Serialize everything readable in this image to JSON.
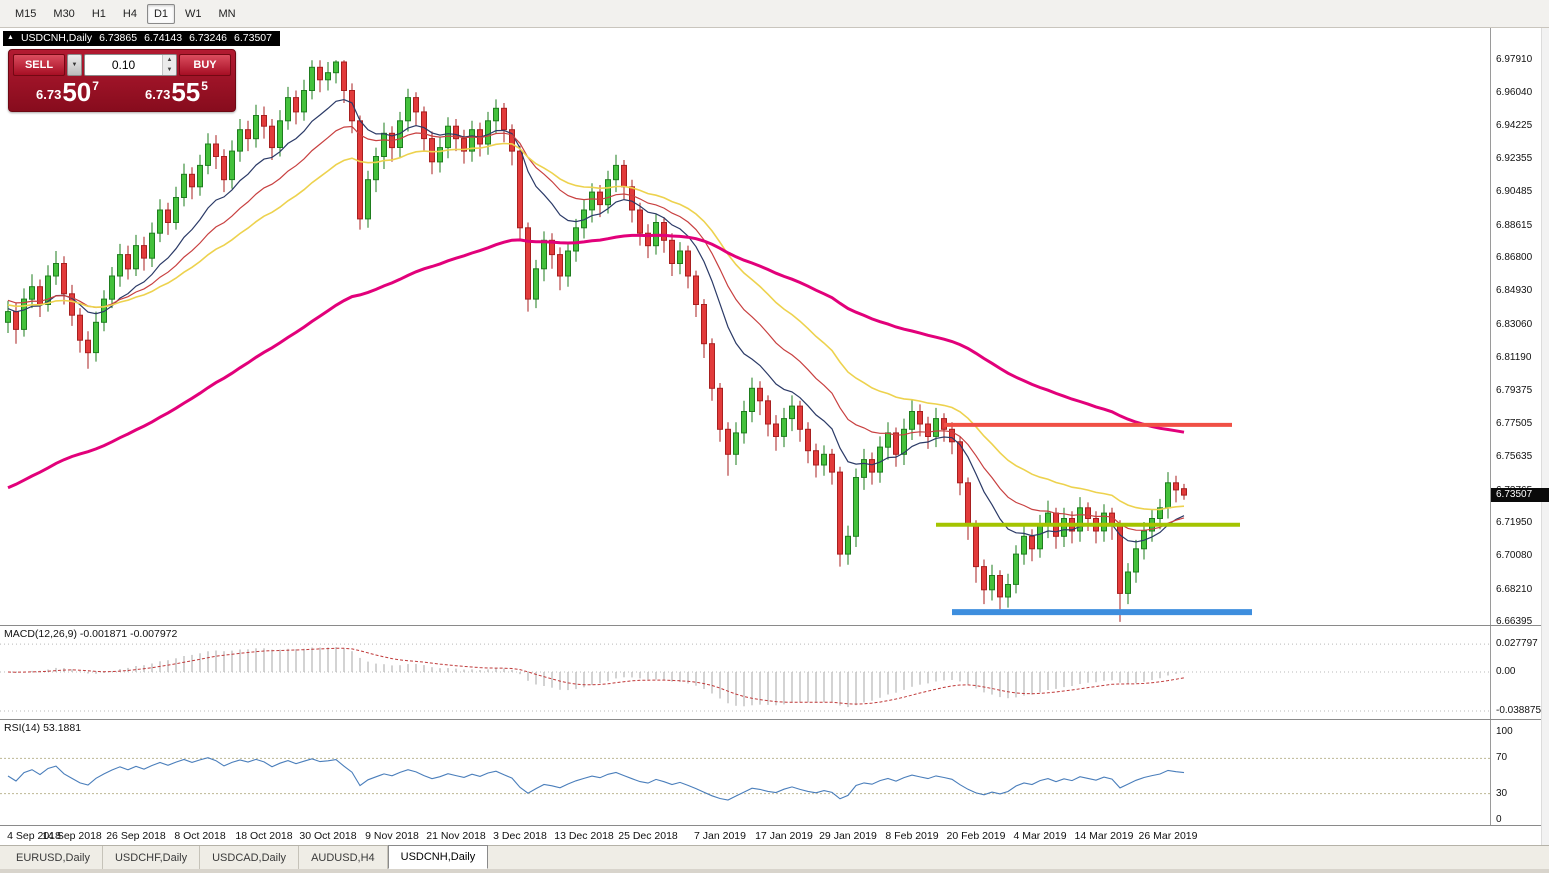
{
  "toolbar": {
    "timeframes": [
      "M15",
      "M30",
      "H1",
      "H4",
      "D1",
      "W1",
      "MN"
    ],
    "active_timeframe": "D1"
  },
  "symbol_bar": {
    "marker": "▲",
    "symbol": "USDCNH,Daily",
    "open": "6.73865",
    "high": "6.74143",
    "low": "6.73246",
    "close": "6.73507"
  },
  "trade_panel": {
    "sell_label": "SELL",
    "buy_label": "BUY",
    "volume": "0.10",
    "sell_price": {
      "prefix": "6.73",
      "big": "50",
      "sup": "7"
    },
    "buy_price": {
      "prefix": "6.73",
      "big": "55",
      "sup": "5"
    }
  },
  "price_axis": {
    "labels": [
      "6.97910",
      "6.96040",
      "6.94225",
      "6.92355",
      "6.90485",
      "6.88615",
      "6.86800",
      "6.84930",
      "6.83060",
      "6.81190",
      "6.79375",
      "6.77505",
      "6.75635",
      "6.73765",
      "6.71950",
      "6.70080",
      "6.68210",
      "6.66395"
    ],
    "current_price_tag": "6.73507"
  },
  "chart_data": {
    "type": "candlestick",
    "title": "USDCNH,Daily",
    "symbol": "USDCNH",
    "timeframe": "Daily",
    "axis": {
      "p_top": 6.9791,
      "p_bottom": 6.66395
    },
    "x_labels": [
      {
        "label": "4 Sep 2018",
        "i": 0
      },
      {
        "label": "14 Sep 2018",
        "i": 8
      },
      {
        "label": "26 Sep 2018",
        "i": 16
      },
      {
        "label": "8 Oct 2018",
        "i": 24
      },
      {
        "label": "18 Oct 2018",
        "i": 32
      },
      {
        "label": "30 Oct 2018",
        "i": 40
      },
      {
        "label": "9 Nov 2018",
        "i": 48
      },
      {
        "label": "21 Nov 2018",
        "i": 56
      },
      {
        "label": "3 Dec 2018",
        "i": 64
      },
      {
        "label": "13 Dec 2018",
        "i": 72
      },
      {
        "label": "25 Dec 2018",
        "i": 80
      },
      {
        "label": "7 Jan 2019",
        "i": 89
      },
      {
        "label": "17 Jan 2019",
        "i": 97
      },
      {
        "label": "29 Jan 2019",
        "i": 105
      },
      {
        "label": "8 Feb 2019",
        "i": 113
      },
      {
        "label": "20 Feb 2019",
        "i": 121
      },
      {
        "label": "4 Mar 2019",
        "i": 129
      },
      {
        "label": "14 Mar 2019",
        "i": 137
      },
      {
        "label": "26 Mar 2019",
        "i": 145
      }
    ],
    "candles": [
      [
        6.832,
        6.844,
        6.826,
        6.838
      ],
      [
        6.838,
        6.843,
        6.82,
        6.828
      ],
      [
        6.828,
        6.851,
        6.824,
        6.845
      ],
      [
        6.845,
        6.859,
        6.84,
        6.852
      ],
      [
        6.852,
        6.856,
        6.835,
        6.842
      ],
      [
        6.842,
        6.864,
        6.838,
        6.858
      ],
      [
        6.858,
        6.872,
        6.853,
        6.865
      ],
      [
        6.865,
        6.869,
        6.842,
        6.848
      ],
      [
        6.848,
        6.853,
        6.83,
        6.836
      ],
      [
        6.836,
        6.84,
        6.815,
        6.822
      ],
      [
        6.822,
        6.827,
        6.806,
        6.815
      ],
      [
        6.815,
        6.838,
        6.81,
        6.832
      ],
      [
        6.832,
        6.85,
        6.827,
        6.845
      ],
      [
        6.845,
        6.863,
        6.84,
        6.858
      ],
      [
        6.858,
        6.876,
        6.852,
        6.87
      ],
      [
        6.87,
        6.875,
        6.856,
        6.862
      ],
      [
        6.862,
        6.881,
        6.858,
        6.875
      ],
      [
        6.875,
        6.88,
        6.861,
        6.868
      ],
      [
        6.868,
        6.888,
        6.863,
        6.882
      ],
      [
        6.882,
        6.901,
        6.877,
        6.895
      ],
      [
        6.895,
        6.899,
        6.881,
        6.888
      ],
      [
        6.888,
        6.908,
        6.884,
        6.902
      ],
      [
        6.902,
        6.921,
        6.897,
        6.915
      ],
      [
        6.915,
        6.919,
        6.901,
        6.908
      ],
      [
        6.908,
        6.926,
        6.903,
        6.92
      ],
      [
        6.92,
        6.938,
        6.915,
        6.932
      ],
      [
        6.932,
        6.937,
        6.918,
        6.925
      ],
      [
        6.925,
        6.929,
        6.905,
        6.912
      ],
      [
        6.912,
        6.934,
        6.907,
        6.928
      ],
      [
        6.928,
        6.946,
        6.922,
        6.94
      ],
      [
        6.94,
        6.945,
        6.928,
        6.935
      ],
      [
        6.935,
        6.954,
        6.93,
        6.948
      ],
      [
        6.948,
        6.953,
        6.935,
        6.942
      ],
      [
        6.942,
        6.946,
        6.923,
        6.93
      ],
      [
        6.93,
        6.951,
        6.925,
        6.945
      ],
      [
        6.945,
        6.964,
        6.94,
        6.958
      ],
      [
        6.958,
        6.962,
        6.943,
        6.95
      ],
      [
        6.95,
        6.968,
        6.945,
        6.962
      ],
      [
        6.962,
        6.979,
        6.957,
        6.975
      ],
      [
        6.975,
        6.979,
        6.961,
        6.968
      ],
      [
        6.968,
        6.978,
        6.962,
        6.972
      ],
      [
        6.972,
        6.979,
        6.966,
        6.978
      ],
      [
        6.978,
        6.979,
        6.955,
        6.962
      ],
      [
        6.962,
        6.966,
        6.938,
        6.945
      ],
      [
        6.945,
        6.948,
        6.884,
        6.89
      ],
      [
        6.89,
        6.917,
        6.885,
        6.912
      ],
      [
        6.912,
        6.93,
        6.905,
        6.925
      ],
      [
        6.925,
        6.944,
        6.918,
        6.938
      ],
      [
        6.938,
        6.942,
        6.922,
        6.93
      ],
      [
        6.93,
        6.95,
        6.924,
        6.945
      ],
      [
        6.945,
        6.963,
        6.939,
        6.958
      ],
      [
        6.958,
        6.961,
        6.942,
        6.95
      ],
      [
        6.95,
        6.953,
        6.928,
        6.935
      ],
      [
        6.935,
        6.939,
        6.915,
        6.922
      ],
      [
        6.922,
        6.936,
        6.916,
        6.93
      ],
      [
        6.93,
        6.947,
        6.924,
        6.942
      ],
      [
        6.942,
        6.946,
        6.928,
        6.935
      ],
      [
        6.935,
        6.94,
        6.921,
        6.928
      ],
      [
        6.928,
        6.945,
        6.922,
        6.94
      ],
      [
        6.94,
        6.944,
        6.925,
        6.932
      ],
      [
        6.932,
        6.95,
        6.926,
        6.945
      ],
      [
        6.945,
        6.957,
        6.938,
        6.952
      ],
      [
        6.952,
        6.955,
        6.933,
        6.94
      ],
      [
        6.94,
        6.943,
        6.92,
        6.928
      ],
      [
        6.928,
        6.931,
        6.878,
        6.885
      ],
      [
        6.885,
        6.888,
        6.838,
        6.845
      ],
      [
        6.845,
        6.867,
        6.84,
        6.862
      ],
      [
        6.862,
        6.883,
        6.855,
        6.878
      ],
      [
        6.878,
        6.882,
        6.862,
        6.87
      ],
      [
        6.87,
        6.874,
        6.85,
        6.858
      ],
      [
        6.858,
        6.877,
        6.852,
        6.872
      ],
      [
        6.872,
        6.89,
        6.866,
        6.885
      ],
      [
        6.885,
        6.901,
        6.879,
        6.895
      ],
      [
        6.895,
        6.91,
        6.888,
        6.905
      ],
      [
        6.905,
        6.909,
        6.891,
        6.898
      ],
      [
        6.898,
        6.917,
        6.893,
        6.912
      ],
      [
        6.912,
        6.926,
        6.905,
        6.92
      ],
      [
        6.92,
        6.923,
        6.901,
        6.908
      ],
      [
        6.908,
        6.912,
        6.888,
        6.895
      ],
      [
        6.895,
        6.899,
        6.875,
        6.882
      ],
      [
        6.882,
        6.887,
        6.868,
        6.875
      ],
      [
        6.875,
        6.893,
        6.87,
        6.888
      ],
      [
        6.888,
        6.891,
        6.871,
        6.878
      ],
      [
        6.878,
        6.882,
        6.858,
        6.865
      ],
      [
        6.865,
        6.877,
        6.859,
        6.872
      ],
      [
        6.872,
        6.875,
        6.851,
        6.858
      ],
      [
        6.858,
        6.861,
        6.835,
        6.842
      ],
      [
        6.842,
        6.845,
        6.812,
        6.82
      ],
      [
        6.82,
        6.823,
        6.788,
        6.795
      ],
      [
        6.795,
        6.798,
        6.765,
        6.772
      ],
      [
        6.772,
        6.776,
        6.746,
        6.758
      ],
      [
        6.758,
        6.776,
        6.752,
        6.77
      ],
      [
        6.77,
        6.788,
        6.764,
        6.782
      ],
      [
        6.782,
        6.801,
        6.776,
        6.795
      ],
      [
        6.795,
        6.799,
        6.78,
        6.788
      ],
      [
        6.788,
        6.791,
        6.768,
        6.775
      ],
      [
        6.775,
        6.78,
        6.76,
        6.768
      ],
      [
        6.768,
        6.784,
        6.762,
        6.778
      ],
      [
        6.778,
        6.791,
        6.771,
        6.785
      ],
      [
        6.785,
        6.788,
        6.765,
        6.772
      ],
      [
        6.772,
        6.776,
        6.753,
        6.76
      ],
      [
        6.76,
        6.764,
        6.745,
        6.752
      ],
      [
        6.752,
        6.763,
        6.746,
        6.758
      ],
      [
        6.758,
        6.761,
        6.741,
        6.748
      ],
      [
        6.748,
        6.751,
        6.695,
        6.702
      ],
      [
        6.702,
        6.718,
        6.696,
        6.712
      ],
      [
        6.712,
        6.75,
        6.706,
        6.745
      ],
      [
        6.745,
        6.761,
        6.738,
        6.755
      ],
      [
        6.755,
        6.759,
        6.741,
        6.748
      ],
      [
        6.748,
        6.768,
        6.742,
        6.762
      ],
      [
        6.762,
        6.776,
        6.755,
        6.77
      ],
      [
        6.77,
        6.773,
        6.751,
        6.758
      ],
      [
        6.758,
        6.778,
        6.752,
        6.772
      ],
      [
        6.772,
        6.789,
        6.766,
        6.782
      ],
      [
        6.782,
        6.786,
        6.768,
        6.775
      ],
      [
        6.775,
        6.779,
        6.761,
        6.768
      ],
      [
        6.768,
        6.784,
        6.762,
        6.778
      ],
      [
        6.778,
        6.781,
        6.765,
        6.772
      ],
      [
        6.772,
        6.776,
        6.758,
        6.765
      ],
      [
        6.765,
        6.768,
        6.735,
        6.742
      ],
      [
        6.742,
        6.745,
        6.71,
        6.718
      ],
      [
        6.718,
        6.721,
        6.686,
        6.695
      ],
      [
        6.695,
        6.699,
        6.674,
        6.682
      ],
      [
        6.682,
        6.696,
        6.676,
        6.69
      ],
      [
        6.69,
        6.693,
        6.671,
        6.678
      ],
      [
        6.678,
        6.691,
        6.672,
        6.685
      ],
      [
        6.685,
        6.707,
        6.68,
        6.702
      ],
      [
        6.702,
        6.718,
        6.696,
        6.712
      ],
      [
        6.712,
        6.716,
        6.698,
        6.705
      ],
      [
        6.705,
        6.724,
        6.7,
        6.718
      ],
      [
        6.718,
        6.732,
        6.711,
        6.725
      ],
      [
        6.725,
        6.728,
        6.705,
        6.712
      ],
      [
        6.712,
        6.728,
        6.706,
        6.722
      ],
      [
        6.722,
        6.726,
        6.708,
        6.715
      ],
      [
        6.715,
        6.734,
        6.709,
        6.728
      ],
      [
        6.728,
        6.731,
        6.715,
        6.722
      ],
      [
        6.722,
        6.726,
        6.708,
        6.715
      ],
      [
        6.715,
        6.73,
        6.709,
        6.725
      ],
      [
        6.725,
        6.728,
        6.71,
        6.718
      ],
      [
        6.718,
        6.721,
        6.664,
        6.68
      ],
      [
        6.68,
        6.697,
        6.674,
        6.692
      ],
      [
        6.692,
        6.71,
        6.686,
        6.705
      ],
      [
        6.705,
        6.72,
        6.699,
        6.715
      ],
      [
        6.715,
        6.727,
        6.709,
        6.722
      ],
      [
        6.722,
        6.733,
        6.716,
        6.728
      ],
      [
        6.728,
        6.748,
        6.722,
        6.742
      ],
      [
        6.742,
        6.746,
        6.731,
        6.738
      ],
      [
        6.7387,
        6.7414,
        6.7325,
        6.7351
      ]
    ],
    "up_color": "#44C13C",
    "up_border": "#1E7D1E",
    "down_color": "#E23B3B",
    "down_border": "#A81F1F",
    "moving_averages": [
      {
        "name": "ma-fast-navy-line",
        "period": 12,
        "seed": 6.84,
        "color": "#2B3A67",
        "width": 1.2
      },
      {
        "name": "ma-mid-red-line",
        "period": 21,
        "seed": 6.845,
        "color": "#C84040",
        "width": 1.2
      },
      {
        "name": "ma-slow-yellow-line",
        "period": 34,
        "seed": 6.842,
        "color": "#EDD24E",
        "width": 1.6
      },
      {
        "name": "ma-long-magenta-line",
        "period": 90,
        "seed": 6.737,
        "color": "#E2007A",
        "width": 3
      }
    ],
    "hlines": [
      {
        "name": "resistance-hline-red",
        "price": 6.7745,
        "i0": 117,
        "i1": 153,
        "color": "#F05045",
        "width": 4
      },
      {
        "name": "support-hline-green",
        "price": 6.7185,
        "i0": 116,
        "i1": 154,
        "color": "#A4C400",
        "width": 4
      },
      {
        "name": "support-hline-blue",
        "price": 6.6695,
        "i0": 118,
        "i1": 155.5,
        "color": "#3E8EDE",
        "width": 6
      }
    ],
    "macd": {
      "label": "MACD(12,26,9) -0.001871 -0.007972",
      "fast": 12,
      "slow": 26,
      "signal": 9,
      "axis_labels": [
        {
          "label": "0.027797",
          "v": 0.027797
        },
        {
          "label": "0.00",
          "v": 0
        },
        {
          "label": "-0.038875",
          "v": -0.038875
        }
      ],
      "histogram_color": "#C0C0C0",
      "signal_color": "#C03A3A"
    },
    "rsi": {
      "label": "RSI(14) 53.1881",
      "period": 14,
      "axis_labels": [
        {
          "label": "100",
          "v": 100
        },
        {
          "label": "70",
          "v": 70
        },
        {
          "label": "30",
          "v": 30
        },
        {
          "label": "0",
          "v": 0
        }
      ],
      "levels": [
        70,
        30
      ],
      "color": "#4A7EBB"
    }
  },
  "bottom_tabs": {
    "tabs": [
      {
        "label": "EURUSD,Daily",
        "active": false
      },
      {
        "label": "USDCHF,Daily",
        "active": false
      },
      {
        "label": "USDCAD,Daily",
        "active": false
      },
      {
        "label": "AUDUSD,H4",
        "active": false
      },
      {
        "label": "USDCNH,Daily",
        "active": true
      }
    ]
  }
}
